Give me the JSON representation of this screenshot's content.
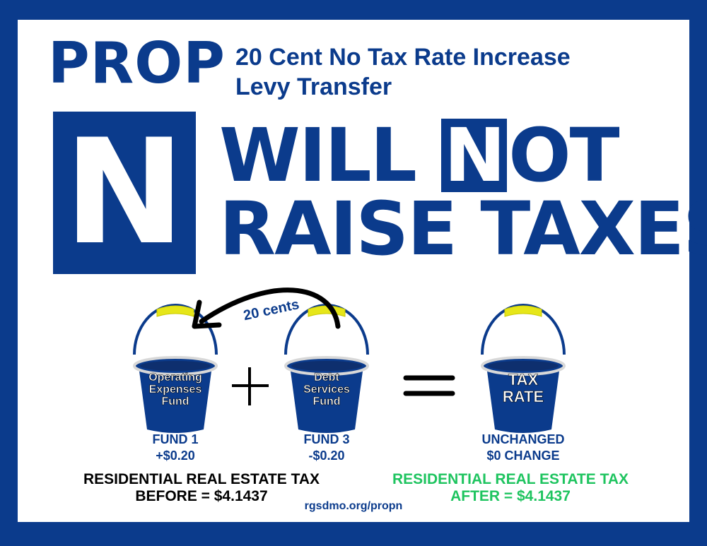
{
  "header": {
    "prop": "PROP",
    "subtitle_line1": "20 Cent No Tax Rate Increase",
    "subtitle_line2": "Levy Transfer"
  },
  "headline": {
    "letter": "N",
    "will": "WILL",
    "n": "N",
    "ot": "OT",
    "line2": "RAISE TAXES"
  },
  "diagram": {
    "arrow_label": "20 cents",
    "buckets": [
      {
        "text": [
          "Operating",
          "Expenses",
          "Fund"
        ],
        "label": "FUND 1",
        "change": "+$0.20"
      },
      {
        "text": [
          "Debt",
          "Services",
          "Fund"
        ],
        "label": "FUND 3",
        "change": "-$0.20"
      },
      {
        "text": [
          "TAX",
          "RATE"
        ],
        "label": "UNCHANGED",
        "change": "$0 CHANGE"
      }
    ],
    "plus": "+",
    "equals": "="
  },
  "footer": {
    "before_line1": "RESIDENTIAL REAL ESTATE TAX",
    "before_line2": "BEFORE = $4.1437",
    "after_line1": "RESIDENTIAL REAL ESTATE TAX",
    "after_line2": "AFTER = $4.1437",
    "url": "rgsdmo.org/propn"
  },
  "colors": {
    "brand_blue": "#0b3b8c",
    "after_green": "#1ec45f",
    "handle_yellow": "#e6e619"
  }
}
